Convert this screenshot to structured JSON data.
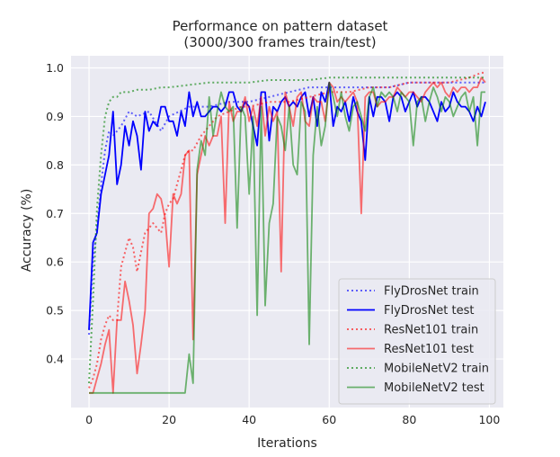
{
  "chart_data": {
    "type": "line",
    "title": "Performance on pattern dataset",
    "subtitle": "(3000/300 frames train/test)",
    "xlabel": "Iterations",
    "ylabel": "Accuracy (%)",
    "xlim": [
      -4.5,
      103.5
    ],
    "ylim": [
      0.3,
      1.025
    ],
    "x_ticks": [
      0,
      20,
      40,
      60,
      80,
      100
    ],
    "y_ticks": [
      0.4,
      0.5,
      0.6,
      0.7,
      0.8,
      0.9,
      1.0
    ],
    "x_tick_labels": [
      "0",
      "20",
      "40",
      "60",
      "80",
      "100"
    ],
    "y_tick_labels": [
      "0.4",
      "0.5",
      "0.6",
      "0.7",
      "0.8",
      "0.9",
      "1.0"
    ],
    "grid": true,
    "background": "#eaeaf2",
    "legend_position": "lower-right",
    "series": [
      {
        "name": "FlyDrosNet train",
        "color": "#0000ff",
        "style": "dotted",
        "x": [
          0,
          1,
          2,
          3,
          4,
          5,
          6,
          8,
          10,
          12,
          15,
          18,
          20,
          25,
          30,
          35,
          40,
          45,
          50,
          55,
          60,
          65,
          70,
          75,
          80,
          85,
          90,
          95,
          99
        ],
        "values": [
          0.45,
          0.6,
          0.67,
          0.76,
          0.83,
          0.87,
          0.86,
          0.88,
          0.91,
          0.9,
          0.91,
          0.87,
          0.9,
          0.92,
          0.92,
          0.93,
          0.93,
          0.94,
          0.95,
          0.96,
          0.96,
          0.96,
          0.96,
          0.96,
          0.97,
          0.97,
          0.97,
          0.97,
          0.97
        ]
      },
      {
        "name": "FlyDrosNet test",
        "color": "#0000ff",
        "style": "solid",
        "x": [
          0,
          1,
          2,
          3,
          4,
          5,
          6,
          7,
          8,
          9,
          10,
          11,
          12,
          13,
          14,
          15,
          16,
          17,
          18,
          19,
          20,
          21,
          22,
          23,
          24,
          25,
          26,
          27,
          28,
          29,
          30,
          31,
          32,
          33,
          34,
          35,
          36,
          37,
          38,
          39,
          40,
          41,
          42,
          43,
          44,
          45,
          46,
          47,
          48,
          49,
          50,
          51,
          52,
          53,
          54,
          55,
          56,
          57,
          58,
          59,
          60,
          61,
          62,
          63,
          64,
          65,
          66,
          67,
          68,
          69,
          70,
          71,
          72,
          73,
          74,
          75,
          76,
          77,
          78,
          79,
          80,
          81,
          82,
          83,
          84,
          85,
          86,
          87,
          88,
          89,
          90,
          91,
          92,
          93,
          94,
          95,
          96,
          97,
          98,
          99
        ],
        "values": [
          0.46,
          0.64,
          0.66,
          0.74,
          0.78,
          0.82,
          0.91,
          0.76,
          0.8,
          0.88,
          0.84,
          0.89,
          0.86,
          0.79,
          0.91,
          0.87,
          0.89,
          0.88,
          0.92,
          0.92,
          0.89,
          0.89,
          0.86,
          0.91,
          0.88,
          0.95,
          0.9,
          0.93,
          0.9,
          0.9,
          0.91,
          0.92,
          0.92,
          0.91,
          0.92,
          0.95,
          0.95,
          0.92,
          0.91,
          0.93,
          0.92,
          0.88,
          0.84,
          0.95,
          0.95,
          0.85,
          0.92,
          0.91,
          0.93,
          0.94,
          0.92,
          0.93,
          0.92,
          0.94,
          0.95,
          0.9,
          0.94,
          0.88,
          0.95,
          0.93,
          0.97,
          0.88,
          0.92,
          0.91,
          0.93,
          0.89,
          0.94,
          0.91,
          0.89,
          0.81,
          0.94,
          0.9,
          0.94,
          0.94,
          0.93,
          0.89,
          0.94,
          0.95,
          0.94,
          0.91,
          0.93,
          0.95,
          0.92,
          0.94,
          0.94,
          0.93,
          0.91,
          0.89,
          0.93,
          0.91,
          0.92,
          0.95,
          0.93,
          0.92,
          0.92,
          0.91,
          0.89,
          0.92,
          0.9,
          0.93
        ]
      },
      {
        "name": "ResNet101 train",
        "color": "#ff0000",
        "style": "dotted",
        "x": [
          0,
          1,
          2,
          3,
          4,
          5,
          6,
          7,
          8,
          9,
          10,
          11,
          12,
          13,
          14,
          15,
          16,
          17,
          18,
          19,
          20,
          21,
          22,
          23,
          24,
          25,
          26,
          28,
          30,
          32,
          35,
          38,
          40,
          45,
          50,
          55,
          60,
          65,
          70,
          75,
          80,
          85,
          90,
          95,
          98,
          99
        ],
        "values": [
          0.34,
          0.36,
          0.39,
          0.44,
          0.47,
          0.49,
          0.48,
          0.48,
          0.59,
          0.62,
          0.65,
          0.63,
          0.58,
          0.62,
          0.66,
          0.67,
          0.68,
          0.67,
          0.66,
          0.7,
          0.72,
          0.73,
          0.76,
          0.79,
          0.82,
          0.83,
          0.83,
          0.86,
          0.88,
          0.9,
          0.91,
          0.92,
          0.92,
          0.93,
          0.93,
          0.94,
          0.95,
          0.95,
          0.96,
          0.96,
          0.97,
          0.97,
          0.97,
          0.98,
          0.99,
          0.99
        ]
      },
      {
        "name": "ResNet101 test",
        "color": "#ff0000",
        "style": "solid",
        "x": [
          0,
          1,
          2,
          3,
          4,
          5,
          6,
          7,
          8,
          9,
          10,
          11,
          12,
          13,
          14,
          15,
          16,
          17,
          18,
          19,
          20,
          21,
          22,
          23,
          24,
          25,
          26,
          27,
          28,
          29,
          30,
          31,
          32,
          33,
          34,
          35,
          36,
          37,
          38,
          39,
          40,
          41,
          42,
          43,
          44,
          45,
          46,
          47,
          48,
          49,
          50,
          51,
          52,
          53,
          54,
          55,
          56,
          57,
          58,
          59,
          60,
          61,
          62,
          63,
          64,
          65,
          66,
          67,
          68,
          69,
          70,
          71,
          72,
          73,
          74,
          75,
          76,
          77,
          78,
          79,
          80,
          81,
          82,
          83,
          84,
          85,
          86,
          87,
          88,
          89,
          90,
          91,
          92,
          93,
          94,
          95,
          96,
          97,
          98,
          99
        ],
        "values": [
          0.33,
          0.33,
          0.36,
          0.39,
          0.43,
          0.46,
          0.33,
          0.48,
          0.48,
          0.56,
          0.52,
          0.47,
          0.37,
          0.43,
          0.5,
          0.7,
          0.71,
          0.74,
          0.73,
          0.69,
          0.59,
          0.74,
          0.72,
          0.74,
          0.82,
          0.83,
          0.44,
          0.78,
          0.82,
          0.86,
          0.84,
          0.86,
          0.86,
          0.9,
          0.68,
          0.93,
          0.89,
          0.91,
          0.91,
          0.94,
          0.89,
          0.92,
          0.88,
          0.94,
          0.86,
          0.92,
          0.89,
          0.91,
          0.58,
          0.95,
          0.92,
          0.88,
          0.94,
          0.95,
          0.89,
          0.88,
          0.94,
          0.93,
          0.93,
          0.89,
          0.97,
          0.96,
          0.93,
          0.94,
          0.93,
          0.94,
          0.95,
          0.93,
          0.7,
          0.94,
          0.95,
          0.95,
          0.92,
          0.93,
          0.93,
          0.94,
          0.94,
          0.96,
          0.95,
          0.94,
          0.95,
          0.95,
          0.94,
          0.93,
          0.95,
          0.96,
          0.97,
          0.96,
          0.97,
          0.95,
          0.94,
          0.96,
          0.95,
          0.96,
          0.96,
          0.95,
          0.96,
          0.96,
          0.98,
          0.97
        ]
      },
      {
        "name": "MobileNetV2 train",
        "color": "#008000",
        "style": "dotted",
        "x": [
          0,
          1,
          2,
          3,
          4,
          5,
          6,
          7,
          8,
          10,
          12,
          15,
          18,
          20,
          25,
          30,
          35,
          40,
          45,
          50,
          55,
          60,
          65,
          70,
          75,
          80,
          85,
          90,
          95,
          99
        ],
        "values": [
          0.35,
          0.52,
          0.71,
          0.82,
          0.9,
          0.93,
          0.94,
          0.94,
          0.95,
          0.95,
          0.955,
          0.955,
          0.96,
          0.96,
          0.965,
          0.97,
          0.97,
          0.97,
          0.975,
          0.975,
          0.975,
          0.98,
          0.98,
          0.98,
          0.98,
          0.98,
          0.98,
          0.98,
          0.98,
          0.98
        ]
      },
      {
        "name": "MobileNetV2 test",
        "color": "#008000",
        "style": "solid",
        "x": [
          0,
          1,
          2,
          3,
          4,
          5,
          6,
          7,
          8,
          9,
          10,
          11,
          12,
          13,
          14,
          15,
          16,
          17,
          18,
          19,
          20,
          21,
          22,
          23,
          24,
          25,
          26,
          27,
          28,
          29,
          30,
          31,
          32,
          33,
          34,
          35,
          36,
          37,
          38,
          39,
          40,
          41,
          42,
          43,
          44,
          45,
          46,
          47,
          48,
          49,
          50,
          51,
          52,
          53,
          54,
          55,
          56,
          57,
          58,
          59,
          60,
          61,
          62,
          63,
          64,
          65,
          66,
          67,
          68,
          69,
          70,
          71,
          72,
          73,
          74,
          75,
          76,
          77,
          78,
          79,
          80,
          81,
          82,
          83,
          84,
          85,
          86,
          87,
          88,
          89,
          90,
          91,
          92,
          93,
          94,
          95,
          96,
          97,
          98,
          99
        ],
        "values": [
          0.33,
          0.33,
          0.33,
          0.33,
          0.33,
          0.33,
          0.33,
          0.33,
          0.33,
          0.33,
          0.33,
          0.33,
          0.33,
          0.33,
          0.33,
          0.33,
          0.33,
          0.33,
          0.33,
          0.33,
          0.33,
          0.33,
          0.33,
          0.33,
          0.33,
          0.41,
          0.35,
          0.79,
          0.85,
          0.82,
          0.94,
          0.86,
          0.91,
          0.95,
          0.92,
          0.91,
          0.92,
          0.67,
          0.92,
          0.9,
          0.74,
          0.9,
          0.49,
          0.92,
          0.51,
          0.68,
          0.72,
          0.9,
          0.88,
          0.83,
          0.92,
          0.8,
          0.78,
          0.93,
          0.91,
          0.43,
          0.82,
          0.92,
          0.84,
          0.88,
          0.97,
          0.94,
          0.9,
          0.95,
          0.9,
          0.87,
          0.92,
          0.93,
          0.9,
          0.87,
          0.94,
          0.96,
          0.92,
          0.95,
          0.94,
          0.95,
          0.94,
          0.91,
          0.95,
          0.94,
          0.93,
          0.84,
          0.93,
          0.94,
          0.89,
          0.93,
          0.96,
          0.94,
          0.91,
          0.94,
          0.93,
          0.9,
          0.92,
          0.94,
          0.95,
          0.91,
          0.94,
          0.84,
          0.95,
          0.95
        ]
      }
    ]
  }
}
